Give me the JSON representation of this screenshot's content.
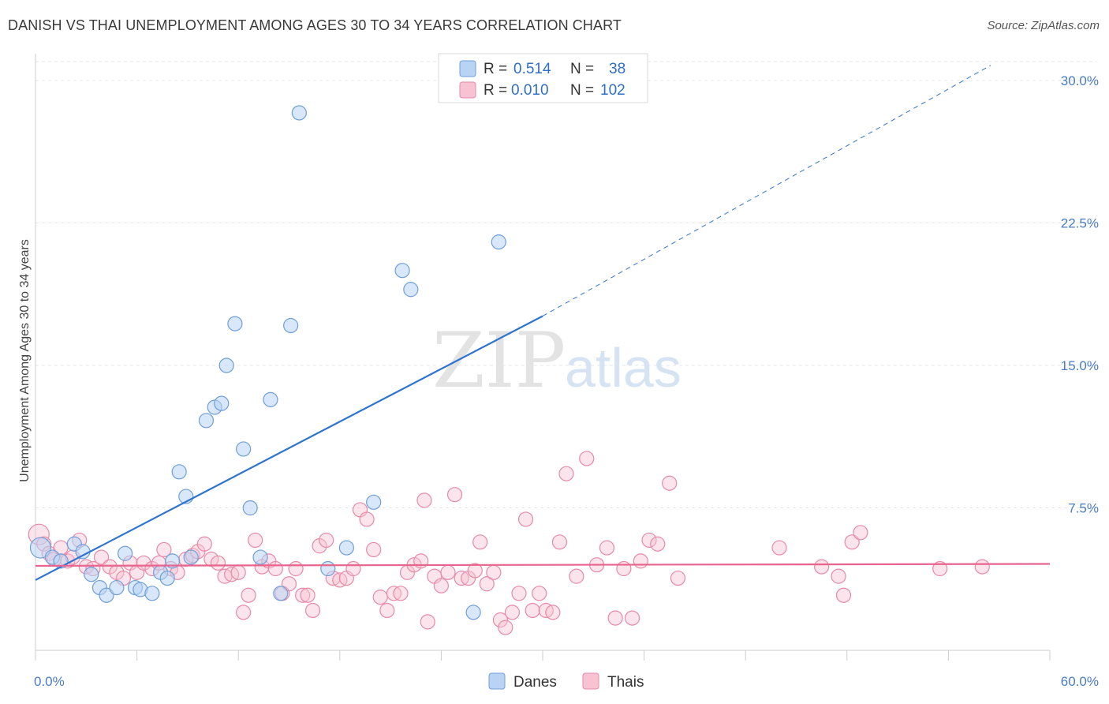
{
  "title": "DANISH VS THAI UNEMPLOYMENT AMONG AGES 30 TO 34 YEARS CORRELATION CHART",
  "source": "Source: ZipAtlas.com",
  "watermark": {
    "zip": "ZIP",
    "atlas": "atlas"
  },
  "colors": {
    "danes_fill": "#b8d3f4",
    "danes_stroke": "#6f9fd8",
    "danes_line": "#2f74d0",
    "thais_fill": "#f7c3d3",
    "thais_stroke": "#e889a8",
    "thais_line": "#e8648f",
    "grid": "#e6e6e6",
    "tick_label": "#4a7cc4"
  },
  "legend_stats": {
    "danes": {
      "r_label": "R =",
      "r_value": "0.514",
      "n_label": "N =",
      "n_value": "38"
    },
    "thais": {
      "r_label": "R =",
      "r_value": "0.010",
      "n_label": "N =",
      "n_value": "102"
    }
  },
  "chart_data": {
    "type": "scatter",
    "title": "DANISH VS THAI UNEMPLOYMENT AMONG AGES 30 TO 34 YEARS CORRELATION CHART",
    "xlabel": "",
    "ylabel": "Unemployment Among Ages 30 to 34 years",
    "xlim": [
      0,
      60
    ],
    "ylim": [
      0,
      31
    ],
    "x_tick_labels": [
      "0.0%",
      "60.0%"
    ],
    "y_ticks": [
      7.5,
      15.0,
      22.5,
      30.0
    ],
    "y_tick_labels": [
      "7.5%",
      "15.0%",
      "22.5%",
      "30.0%"
    ],
    "grid": true,
    "legend_position": "bottom-center",
    "series": [
      {
        "name": "Danes",
        "color": "#b8d3f4",
        "trend": {
          "x": [
            0,
            30
          ],
          "y": [
            3.7,
            17.6
          ],
          "dashed_extension_to": [
            56.5,
            30.8
          ]
        },
        "points": [
          [
            0.3,
            5.4
          ],
          [
            1.0,
            4.9
          ],
          [
            1.5,
            4.7
          ],
          [
            2.3,
            5.6
          ],
          [
            2.8,
            5.2
          ],
          [
            3.3,
            4.0
          ],
          [
            3.8,
            3.3
          ],
          [
            4.2,
            2.9
          ],
          [
            4.8,
            3.3
          ],
          [
            5.3,
            5.1
          ],
          [
            5.9,
            3.3
          ],
          [
            6.2,
            3.2
          ],
          [
            6.9,
            3.0
          ],
          [
            7.4,
            4.1
          ],
          [
            7.8,
            3.8
          ],
          [
            8.1,
            4.7
          ],
          [
            8.5,
            9.4
          ],
          [
            8.9,
            8.1
          ],
          [
            9.2,
            4.9
          ],
          [
            10.1,
            12.1
          ],
          [
            10.6,
            12.8
          ],
          [
            11.0,
            13.0
          ],
          [
            11.3,
            15.0
          ],
          [
            11.8,
            17.2
          ],
          [
            12.3,
            10.6
          ],
          [
            12.7,
            7.5
          ],
          [
            13.3,
            4.9
          ],
          [
            13.9,
            13.2
          ],
          [
            14.5,
            3.0
          ],
          [
            15.1,
            17.1
          ],
          [
            15.6,
            28.3
          ],
          [
            17.3,
            4.3
          ],
          [
            18.4,
            5.4
          ],
          [
            20.0,
            7.8
          ],
          [
            21.7,
            20.0
          ],
          [
            22.2,
            19.0
          ],
          [
            25.9,
            2.0
          ],
          [
            27.4,
            21.5
          ]
        ]
      },
      {
        "name": "Thais",
        "color": "#f7c3d3",
        "trend": {
          "x": [
            0,
            60
          ],
          "y": [
            4.45,
            4.55
          ]
        },
        "points": [
          [
            0.2,
            6.1
          ],
          [
            0.5,
            5.6
          ],
          [
            0.8,
            5.1
          ],
          [
            1.1,
            4.8
          ],
          [
            1.5,
            5.4
          ],
          [
            1.9,
            4.7
          ],
          [
            2.2,
            4.9
          ],
          [
            2.6,
            5.8
          ],
          [
            3.0,
            4.4
          ],
          [
            3.4,
            4.3
          ],
          [
            3.9,
            4.9
          ],
          [
            4.4,
            4.4
          ],
          [
            4.8,
            4.1
          ],
          [
            5.2,
            3.8
          ],
          [
            5.6,
            4.6
          ],
          [
            6.0,
            4.1
          ],
          [
            6.4,
            4.6
          ],
          [
            6.9,
            4.3
          ],
          [
            7.3,
            4.6
          ],
          [
            7.6,
            5.3
          ],
          [
            8.0,
            4.3
          ],
          [
            8.4,
            4.1
          ],
          [
            8.9,
            4.8
          ],
          [
            9.3,
            5.0
          ],
          [
            9.6,
            5.2
          ],
          [
            10.0,
            5.6
          ],
          [
            10.4,
            4.8
          ],
          [
            10.8,
            4.6
          ],
          [
            11.2,
            3.9
          ],
          [
            11.6,
            4.0
          ],
          [
            12.0,
            4.1
          ],
          [
            12.3,
            2.0
          ],
          [
            12.6,
            2.9
          ],
          [
            13.0,
            5.8
          ],
          [
            13.4,
            4.4
          ],
          [
            13.8,
            4.7
          ],
          [
            14.2,
            4.3
          ],
          [
            14.6,
            3.0
          ],
          [
            15.0,
            3.5
          ],
          [
            15.4,
            4.3
          ],
          [
            15.8,
            2.9
          ],
          [
            16.1,
            2.9
          ],
          [
            16.4,
            2.1
          ],
          [
            16.8,
            5.5
          ],
          [
            17.2,
            5.8
          ],
          [
            17.6,
            3.8
          ],
          [
            18.0,
            3.7
          ],
          [
            18.4,
            3.8
          ],
          [
            18.8,
            4.3
          ],
          [
            19.2,
            7.4
          ],
          [
            19.6,
            6.9
          ],
          [
            20.0,
            5.3
          ],
          [
            20.4,
            2.8
          ],
          [
            20.8,
            2.1
          ],
          [
            21.2,
            3.0
          ],
          [
            21.6,
            3.0
          ],
          [
            22.0,
            4.1
          ],
          [
            22.4,
            4.5
          ],
          [
            22.8,
            4.7
          ],
          [
            23.2,
            1.5
          ],
          [
            23.6,
            3.9
          ],
          [
            24.0,
            3.4
          ],
          [
            24.4,
            4.1
          ],
          [
            24.8,
            8.2
          ],
          [
            25.2,
            3.8
          ],
          [
            25.6,
            3.8
          ],
          [
            26.0,
            4.2
          ],
          [
            26.3,
            5.7
          ],
          [
            26.7,
            3.5
          ],
          [
            27.1,
            4.1
          ],
          [
            27.5,
            1.6
          ],
          [
            27.8,
            1.2
          ],
          [
            28.2,
            2.0
          ],
          [
            28.6,
            3.0
          ],
          [
            29.0,
            6.9
          ],
          [
            29.4,
            2.1
          ],
          [
            29.8,
            3.0
          ],
          [
            30.2,
            2.1
          ],
          [
            30.6,
            2.0
          ],
          [
            31.0,
            5.7
          ],
          [
            31.4,
            9.3
          ],
          [
            32.0,
            3.9
          ],
          [
            32.6,
            10.1
          ],
          [
            33.2,
            4.5
          ],
          [
            33.8,
            5.4
          ],
          [
            34.3,
            1.7
          ],
          [
            34.8,
            4.3
          ],
          [
            35.3,
            1.7
          ],
          [
            35.8,
            4.7
          ],
          [
            36.3,
            5.8
          ],
          [
            36.8,
            5.6
          ],
          [
            37.5,
            8.8
          ],
          [
            38.0,
            3.8
          ],
          [
            44.0,
            5.4
          ],
          [
            46.5,
            4.4
          ],
          [
            47.5,
            3.9
          ],
          [
            47.8,
            2.9
          ],
          [
            48.3,
            5.7
          ],
          [
            48.8,
            6.2
          ],
          [
            53.5,
            4.3
          ],
          [
            56.0,
            4.4
          ],
          [
            23.0,
            7.9
          ]
        ]
      }
    ]
  }
}
